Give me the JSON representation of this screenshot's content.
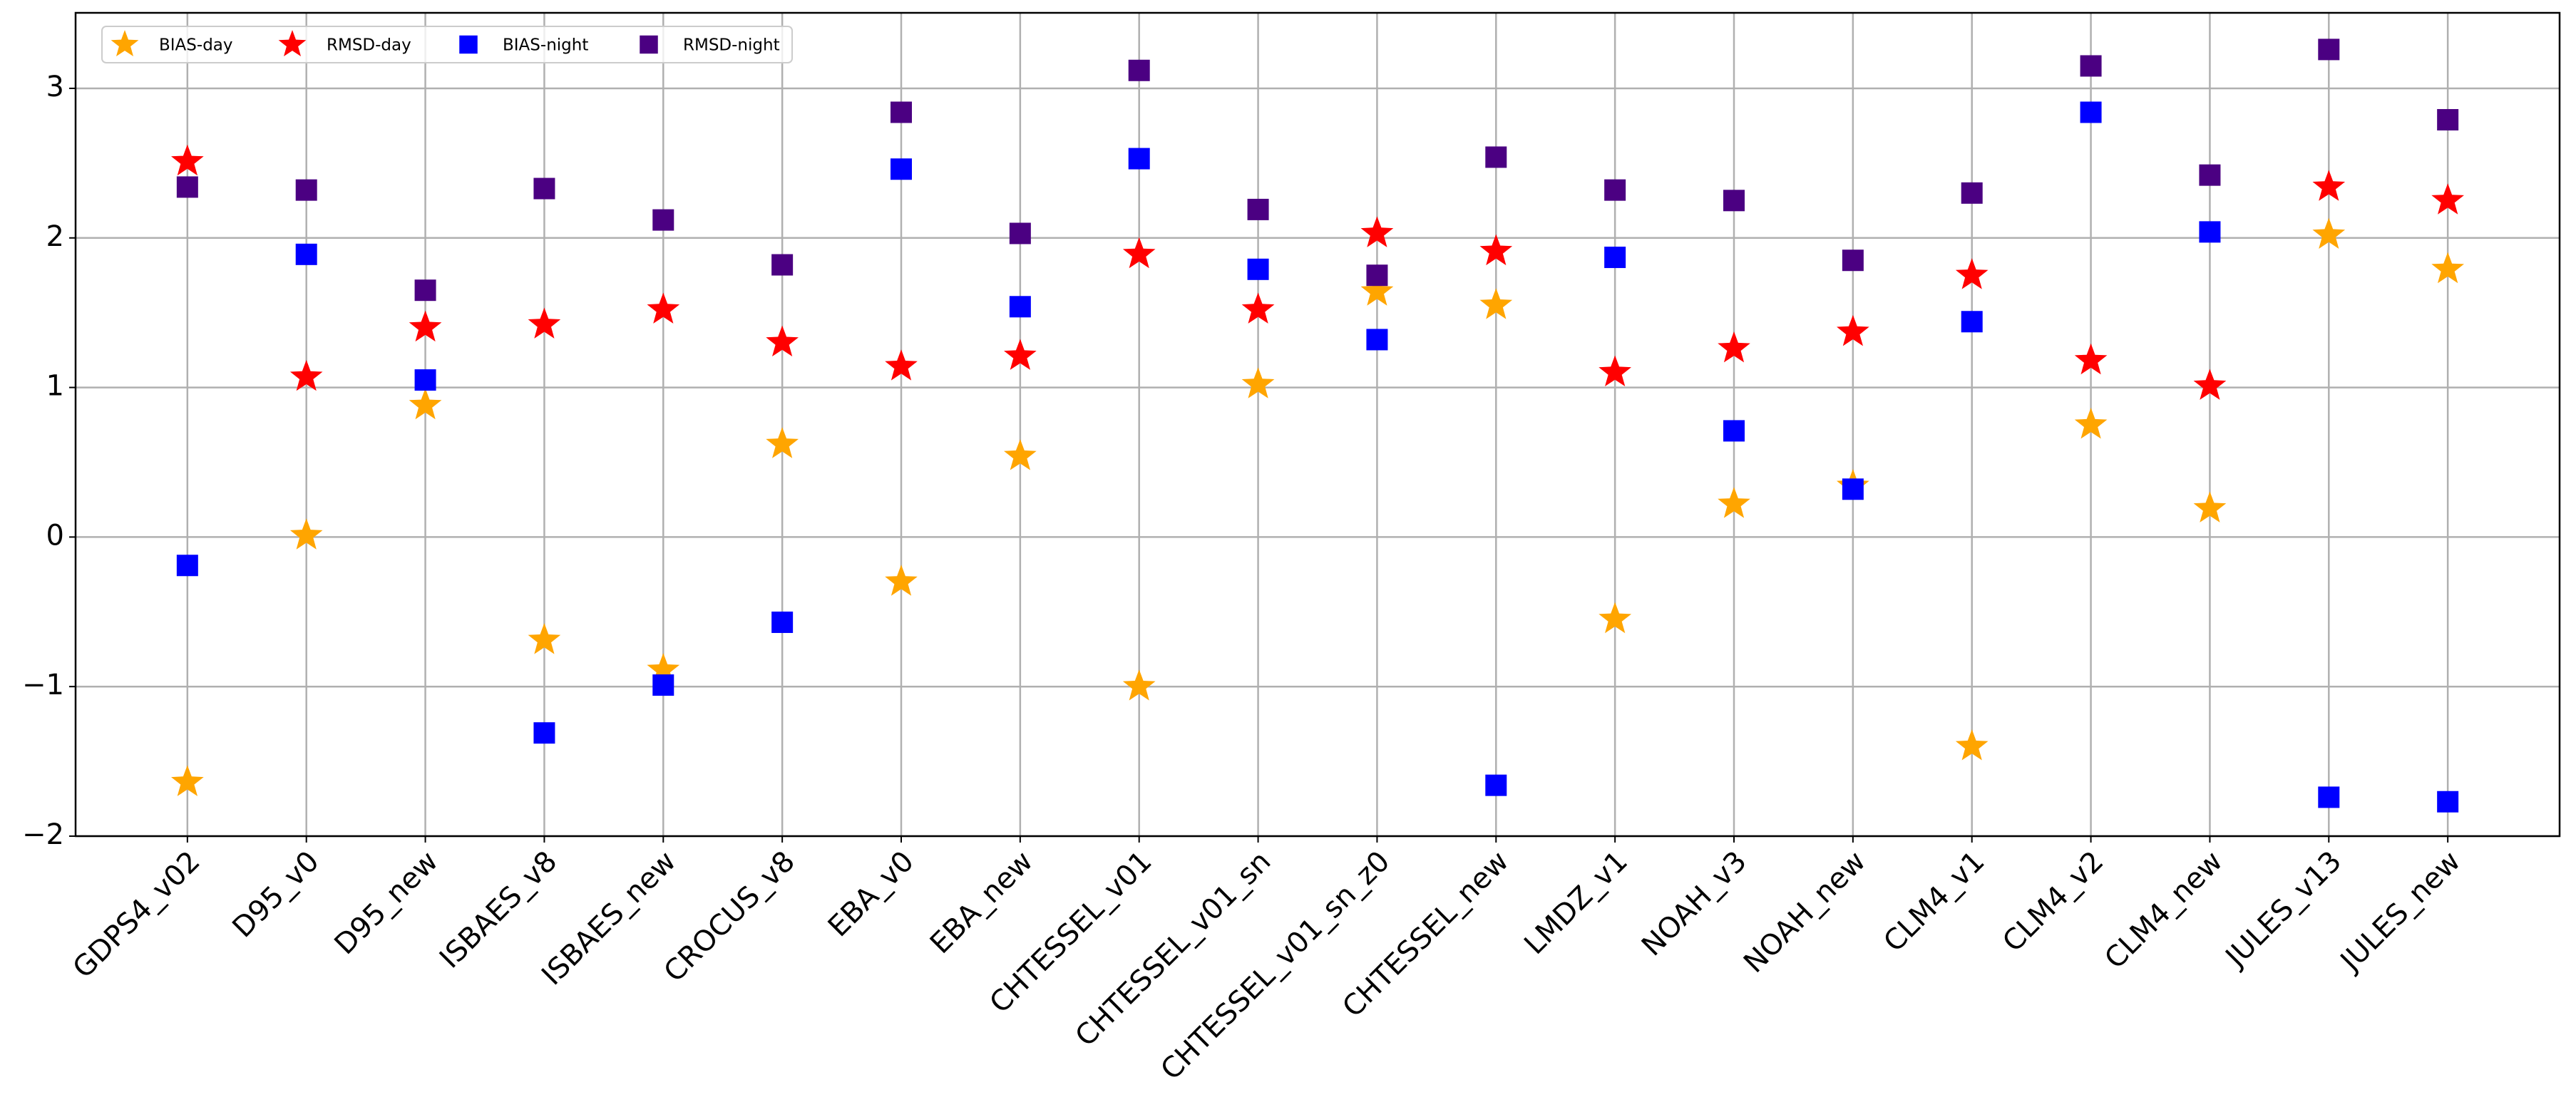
{
  "chart_data": {
    "type": "scatter",
    "categories": [
      "GDPS4_v02",
      "D95_v0",
      "D95_new",
      "ISBAES_v8",
      "ISBAES_new",
      "CROCUS_v8",
      "EBA_v0",
      "EBA_new",
      "CHTESSEL_v01",
      "CHTESSEL_v01_sn",
      "CHTESSEL_v01_sn_z0",
      "CHTESSEL_new",
      "LMDZ_v1",
      "NOAH_v3",
      "NOAH_new",
      "CLM4_v1",
      "CLM4_v2",
      "CLM4_new",
      "JULES_v13",
      "JULES_new"
    ],
    "series": [
      {
        "name": "BIAS-day",
        "color": "#ffa500",
        "marker": "star",
        "values": [
          -1.64,
          0.01,
          0.88,
          -0.69,
          -0.89,
          0.62,
          -0.3,
          0.54,
          -1.0,
          1.02,
          1.64,
          1.55,
          -0.55,
          0.22,
          0.34,
          -1.4,
          0.75,
          0.19,
          2.02,
          1.79
        ]
      },
      {
        "name": "RMSD-day",
        "color": "#ff0000",
        "marker": "star",
        "values": [
          2.51,
          1.07,
          1.4,
          1.42,
          1.52,
          1.3,
          1.14,
          1.21,
          1.89,
          1.52,
          2.03,
          1.91,
          1.1,
          1.26,
          1.37,
          1.75,
          1.18,
          1.01,
          2.34,
          2.25
        ]
      },
      {
        "name": "BIAS-night",
        "color": "#0000ff",
        "marker": "square",
        "values": [
          -0.19,
          1.89,
          1.05,
          -1.31,
          -0.99,
          -0.57,
          2.46,
          1.54,
          2.53,
          1.79,
          1.32,
          -1.66,
          1.87,
          0.71,
          0.32,
          1.44,
          2.84,
          2.04,
          -1.74,
          -1.77
        ]
      },
      {
        "name": "RMSD-night",
        "color": "#4b0082",
        "marker": "square",
        "values": [
          2.34,
          2.32,
          1.65,
          2.33,
          2.12,
          1.82,
          2.84,
          2.03,
          3.12,
          2.19,
          1.75,
          2.54,
          2.32,
          2.25,
          1.85,
          2.3,
          3.15,
          2.42,
          3.26,
          2.79
        ]
      }
    ],
    "ylim": [
      -2,
      3.505
    ],
    "yticks": [
      {
        "value": -2,
        "label": "−2"
      },
      {
        "value": -1,
        "label": "−1"
      },
      0,
      1,
      2,
      3
    ],
    "grid": true,
    "legend": "upper left"
  }
}
